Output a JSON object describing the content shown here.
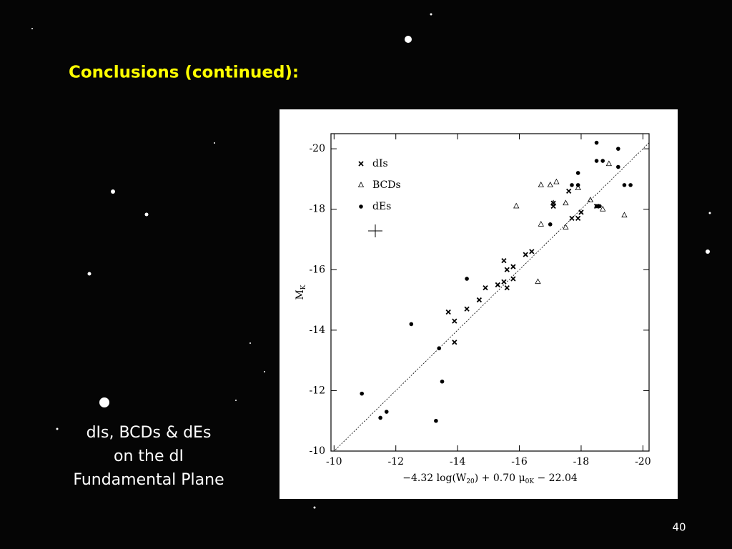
{
  "slide": {
    "title": "Conclusions (continued):",
    "caption": [
      "dIs, BCDs & dEs",
      "on the dI",
      "Fundamental Plane"
    ],
    "page_number": "40"
  },
  "chart_data": {
    "type": "scatter",
    "x_label": [
      "−4.32 log(W",
      "20",
      ") + 0.70 μ",
      "0K",
      " − 22.04"
    ],
    "y_label": [
      "M",
      "K"
    ],
    "xlim": [
      -9.9,
      -20.2
    ],
    "ylim": [
      -10,
      -20.5
    ],
    "xticks": [
      -10,
      -12,
      -14,
      -16,
      -18,
      -20
    ],
    "yticks": [
      -10,
      -12,
      -14,
      -16,
      -18,
      -20
    ],
    "legend": "upper left",
    "series": [
      {
        "name": "dIs",
        "marker": "x",
        "color": "#000000",
        "x": [
          -13.7,
          -13.9,
          -13.9,
          -14.3,
          -14.7,
          -14.9,
          -15.3,
          -15.5,
          -15.6,
          -15.5,
          -15.6,
          -15.8,
          -15.8,
          -16.2,
          -16.4,
          -17.1,
          -17.1,
          -17.6,
          -17.7,
          -17.9,
          -18.0,
          -18.5
        ],
        "values": [
          -14.6,
          -14.3,
          -13.6,
          -14.7,
          -15.0,
          -15.4,
          -15.5,
          -16.3,
          -16.0,
          -15.6,
          -15.4,
          -16.1,
          -15.7,
          -16.5,
          -16.6,
          -18.2,
          -18.1,
          -18.6,
          -17.7,
          -17.7,
          -17.9,
          -18.1
        ]
      },
      {
        "name": "BCDs",
        "marker": "triangle",
        "color": "#000000",
        "x": [
          -15.9,
          -16.6,
          -16.7,
          -16.7,
          -17.0,
          -17.1,
          -17.2,
          -17.5,
          -17.5,
          -17.9,
          -18.3,
          -18.7,
          -18.9,
          -19.4
        ],
        "values": [
          -18.1,
          -15.6,
          -18.8,
          -17.5,
          -18.8,
          -18.2,
          -18.9,
          -18.2,
          -17.4,
          -18.7,
          -18.3,
          -18.0,
          -19.5,
          -17.8
        ]
      },
      {
        "name": "dEs",
        "marker": "dot",
        "color": "#000000",
        "x": [
          -10.9,
          -11.5,
          -11.7,
          -12.5,
          -13.3,
          -13.4,
          -13.5,
          -14.3,
          -17.0,
          -17.7,
          -17.9,
          -17.9,
          -18.5,
          -18.5,
          -18.5,
          -18.6,
          -18.7,
          -19.2,
          -19.2,
          -19.4,
          -19.6
        ],
        "values": [
          -11.9,
          -11.1,
          -11.3,
          -14.2,
          -11.0,
          -13.4,
          -12.3,
          -15.7,
          -17.5,
          -18.8,
          -18.8,
          -19.2,
          -20.2,
          -19.6,
          -18.1,
          -18.1,
          -19.6,
          -19.4,
          -20.0,
          -18.8,
          -18.8
        ]
      }
    ]
  }
}
